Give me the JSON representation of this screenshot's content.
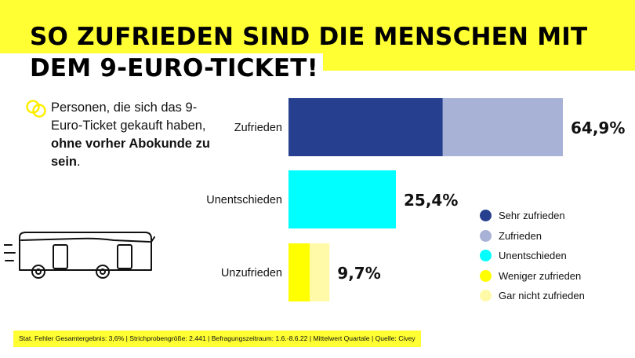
{
  "title": {
    "line1": "SO ZUFRIEDEN SIND DIE MENSCHEN MIT",
    "line2": "DEM 9-EURO-TICKET!"
  },
  "description": {
    "text_regular": "Personen, die sich das 9-Euro-Ticket gekauft haben, ",
    "text_bold": "ohne vorher Abokunde zu sein",
    "text_end": "."
  },
  "icons": {
    "logo": "rings-icon",
    "illustration": "bus-icon"
  },
  "colors": {
    "yellow_band": "#ffff33",
    "sehr_zufrieden": "#26408f",
    "zufrieden": "#a7b2d6",
    "unentschieden": "#00ffff",
    "weniger_zufrieden": "#ffff00",
    "gar_nicht_zufrieden": "#fffaa8"
  },
  "chart_data": {
    "type": "bar",
    "orientation": "horizontal",
    "stacked": true,
    "categories": [
      "Zufrieden",
      "Unentschieden",
      "Unzufrieden"
    ],
    "series": [
      {
        "name": "Sehr zufrieden",
        "values": [
          36.5,
          0,
          0
        ]
      },
      {
        "name": "Zufrieden",
        "values": [
          28.4,
          0,
          0
        ]
      },
      {
        "name": "Unentschieden",
        "values": [
          0,
          25.4,
          0
        ]
      },
      {
        "name": "Weniger zufrieden",
        "values": [
          0,
          0,
          5.0
        ]
      },
      {
        "name": "Gar nicht zufrieden",
        "values": [
          0,
          0,
          4.7
        ]
      }
    ],
    "totals": [
      64.9,
      25.4,
      9.7
    ],
    "total_labels": [
      "64,9%",
      "25,4%",
      "9,7%"
    ],
    "xlim": [
      0,
      64.9
    ],
    "grid": false,
    "legend_position": "right"
  },
  "footer": "Stat. Fehler Gesamtergebnis: 3,6% | Strichprobengröße: 2.441 | Befragungszeitraum: 1.6.-8.6.22 | Mittelwert Quartale | Quelle: Civey"
}
